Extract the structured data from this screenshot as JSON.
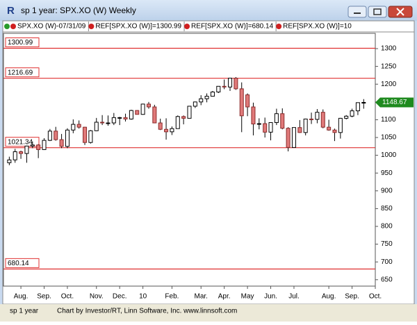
{
  "chart_data": {
    "type": "candlestick",
    "title": "sp 1 year: SPX.XO (W) Weekly",
    "legend_items": [
      "SPX.XO (W)-07/31/09",
      "REF[SPX.XO (W)]=1300.99",
      "REF[SPX.XO (W)]=680.14",
      "REF[SPX.XO (W)]=10"
    ],
    "footer_tab": "sp 1 year",
    "footer_credit": "Chart by Investor/RT, Linn Software, Inc. www.linnsoft.com",
    "up_color": "#ffffff",
    "down_color": "#e07a7a",
    "ref_color": "#e03030",
    "last_color": "#1e8a1e",
    "ylim": [
      632,
      1343
    ],
    "yticks": [
      650,
      700,
      750,
      800,
      850,
      900,
      950,
      1000,
      1050,
      1100,
      1150,
      1200,
      1250,
      1300
    ],
    "xticks": [
      {
        "value": 2,
        "label": "Aug."
      },
      {
        "value": 6,
        "label": "Sep."
      },
      {
        "value": 10,
        "label": "Oct."
      },
      {
        "value": 15,
        "label": "Nov."
      },
      {
        "value": 19,
        "label": "Dec."
      },
      {
        "value": 23,
        "label": "10"
      },
      {
        "value": 28,
        "label": "Feb."
      },
      {
        "value": 33,
        "label": "Mar."
      },
      {
        "value": 37,
        "label": "Apr."
      },
      {
        "value": 41,
        "label": "May"
      },
      {
        "value": 45,
        "label": "Jun."
      },
      {
        "value": 49,
        "label": "Jul."
      },
      {
        "value": 55,
        "label": "Aug."
      },
      {
        "value": 59,
        "label": "Sep."
      },
      {
        "value": 63,
        "label": "Oct."
      }
    ],
    "ref_lines": [
      1300.99,
      1216.69,
      1021.34,
      680.14
    ],
    "open": [
      979,
      987,
      1010,
      1005,
      1026,
      1029,
      1016,
      1042,
      1068,
      1044,
      1025,
      1071,
      1087,
      1079,
      1036,
      1069,
      1093,
      1091,
      1091,
      1106,
      1106,
      1102,
      1126,
      1115,
      1144,
      1136,
      1091,
      1073,
      1066,
      1075,
      1109,
      1104,
      1138,
      1150,
      1159,
      1166,
      1178,
      1194,
      1192,
      1217,
      1187,
      1170,
      1136,
      1088,
      1089,
      1065,
      1092,
      1117,
      1076,
      1022,
      1078,
      1064,
      1102,
      1101,
      1121,
      1079,
      1071,
      1064,
      1104,
      1110,
      1125,
      1148
    ],
    "high": [
      996,
      1018,
      1013,
      1027,
      1039,
      1031,
      1048,
      1074,
      1080,
      1060,
      1076,
      1101,
      1098,
      1080,
      1071,
      1105,
      1113,
      1112,
      1119,
      1108,
      1117,
      1128,
      1127,
      1145,
      1150,
      1142,
      1103,
      1104,
      1081,
      1112,
      1112,
      1139,
      1151,
      1169,
      1174,
      1181,
      1194,
      1213,
      1217,
      1220,
      1205,
      1174,
      1148,
      1104,
      1106,
      1093,
      1131,
      1132,
      1079,
      1078,
      1099,
      1103,
      1120,
      1130,
      1129,
      1100,
      1075,
      1105,
      1113,
      1131,
      1148,
      1158
    ],
    "low": [
      972,
      979,
      990,
      979,
      1020,
      992,
      1015,
      1040,
      1041,
      1020,
      1020,
      1062,
      1075,
      1029,
      1033,
      1068,
      1085,
      1083,
      1085,
      1085,
      1095,
      1100,
      1115,
      1114,
      1131,
      1090,
      1071,
      1044,
      1057,
      1075,
      1087,
      1104,
      1133,
      1141,
      1149,
      1165,
      1175,
      1186,
      1181,
      1184,
      1065,
      1110,
      1056,
      1073,
      1050,
      1042,
      1085,
      1073,
      1011,
      1022,
      1063,
      1056,
      1088,
      1090,
      1076,
      1069,
      1040,
      1047,
      1101,
      1107,
      1113,
      1131
    ],
    "close": [
      987,
      1010,
      1005,
      1026,
      1029,
      1016,
      1042,
      1068,
      1044,
      1025,
      1071,
      1087,
      1079,
      1036,
      1069,
      1093,
      1091,
      1091,
      1106,
      1106,
      1102,
      1126,
      1115,
      1144,
      1136,
      1091,
      1073,
      1066,
      1075,
      1109,
      1104,
      1138,
      1150,
      1159,
      1166,
      1178,
      1194,
      1192,
      1217,
      1187,
      1111,
      1136,
      1088,
      1089,
      1065,
      1092,
      1117,
      1076,
      1022,
      1078,
      1064,
      1102,
      1101,
      1121,
      1079,
      1071,
      1064,
      1104,
      1110,
      1125,
      1148,
      1148.67
    ]
  }
}
